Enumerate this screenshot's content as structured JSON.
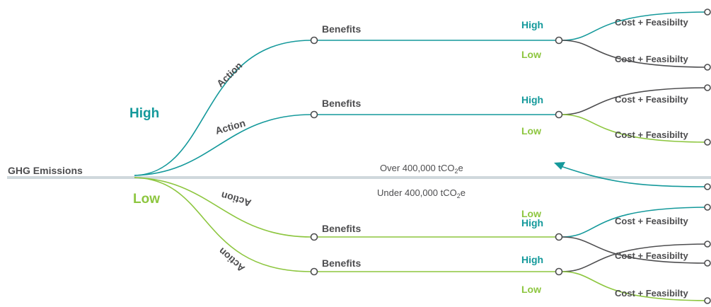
{
  "root_label": "GHG Emissions",
  "emission_levels": {
    "high": "High",
    "low": "Low"
  },
  "action_label": "Action",
  "benefits_label": "Benefits",
  "benefit_levels": {
    "high": "High",
    "low": "Low"
  },
  "cost_label": "Cost + Feasibilty",
  "threshold": {
    "over_prefix": "Over 400,000 tCO",
    "over_sub": "2",
    "over_suffix": "e",
    "under_prefix": "Under 400,000 tCO",
    "under_sub": "2",
    "under_suffix": "e"
  },
  "colors": {
    "teal": "#14999b",
    "green": "#8dc63f",
    "gray": "#4d4d4f",
    "divider": "#cfd8dc"
  }
}
